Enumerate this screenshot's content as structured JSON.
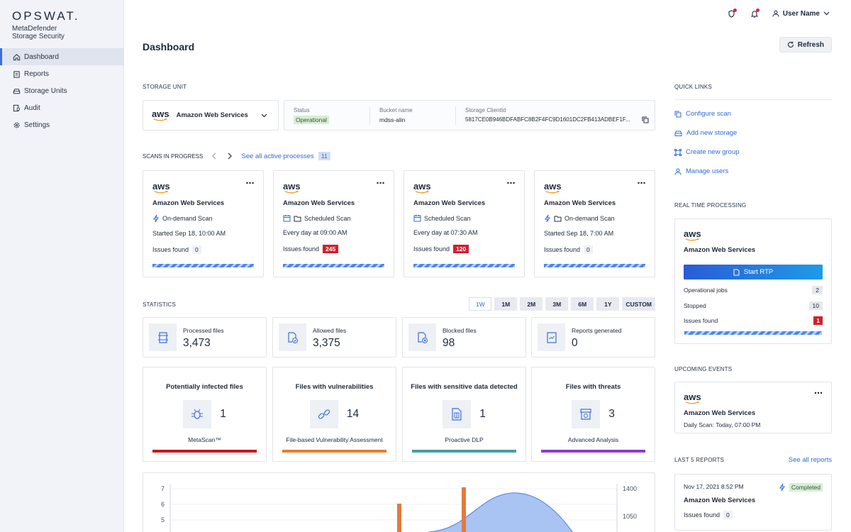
{
  "brand": {
    "logo": "OPSWAT.",
    "product_line1": "MetaDefender",
    "product_line2": "Storage Security"
  },
  "sidebar": {
    "items": [
      {
        "label": "Dashboard",
        "icon": "home-icon",
        "active": true
      },
      {
        "label": "Reports",
        "icon": "clipboard-icon",
        "active": false
      },
      {
        "label": "Storage Units",
        "icon": "storage-icon",
        "active": false
      },
      {
        "label": "Audit",
        "icon": "audit-icon",
        "active": false
      },
      {
        "label": "Settings",
        "icon": "gear-icon",
        "active": false
      }
    ]
  },
  "topbar": {
    "user_name": "User Name"
  },
  "page": {
    "title": "Dashboard",
    "refresh_label": "Refresh"
  },
  "storage_unit": {
    "section_label": "STORAGE UNIT",
    "selected": "Amazon Web Services",
    "status_label": "Status",
    "status_value": "Operational",
    "bucket_label": "Bucket name",
    "bucket_value": "mdss-alin",
    "client_label": "Storage ClientId",
    "client_value": "5817CE0B946BDFABFC8B2F4FC9D1601DC2FB413ADBEF1F..."
  },
  "scans": {
    "section_label": "SCANS IN PROGRESS",
    "see_all": "See all active processes",
    "count": "11",
    "cards": [
      {
        "provider": "Amazon Web Services",
        "type": "On-demand Scan",
        "schedule": "Started Sep 18, 10:00 AM",
        "issues_label": "Issues found",
        "issues": "0",
        "red": false,
        "folder": false,
        "type_icon": "bolt-icon"
      },
      {
        "provider": "Amazon Web Services",
        "type": "Scheduled Scan",
        "schedule": "Every day at 09:00 AM",
        "issues_label": "Issues found",
        "issues": "245",
        "red": true,
        "folder": true,
        "type_icon": "calendar-icon"
      },
      {
        "provider": "Amazon Web Services",
        "type": "Scheduled Scan",
        "schedule": "Every day at 07:30 AM",
        "issues_label": "Issues found",
        "issues": "120",
        "red": true,
        "folder": false,
        "type_icon": "calendar-icon"
      },
      {
        "provider": "Amazon Web Services",
        "type": "On-demand Scan",
        "schedule": "Started Sep 18, 7:00 AM",
        "issues_label": "Issues found",
        "issues": "0",
        "red": false,
        "folder": true,
        "type_icon": "bolt-icon"
      }
    ]
  },
  "statistics": {
    "section_label": "STATISTICS",
    "ranges": [
      "1W",
      "1M",
      "2M",
      "3M",
      "6M",
      "1Y",
      "CUSTOM"
    ],
    "active_range": "1W",
    "summary": [
      {
        "label": "Processed files",
        "value": "3,473",
        "icon": "processed-files-icon"
      },
      {
        "label": "Allowed files",
        "value": "3,375",
        "icon": "allowed-files-icon"
      },
      {
        "label": "Blocked files",
        "value": "98",
        "icon": "blocked-files-icon"
      },
      {
        "label": "Reports generated",
        "value": "0",
        "icon": "reports-icon"
      }
    ],
    "details": [
      {
        "title": "Potentially infected files",
        "value": "1",
        "sub": "MetaScan™",
        "color": "#c8161d",
        "icon": "bug-icon"
      },
      {
        "title": "Files with vulnerabilities",
        "value": "14",
        "sub": "File-based Vulnerability Assessment",
        "color": "#e67e2e",
        "icon": "link-icon"
      },
      {
        "title": "Files with sensitive data detected",
        "value": "1",
        "sub": "Proactive DLP",
        "color": "#4a9ea0",
        "icon": "document-icon"
      },
      {
        "title": "Files with threats",
        "value": "3",
        "sub": "Advanced Analysis",
        "color": "#8a3ecf",
        "icon": "sandbox-icon"
      }
    ]
  },
  "chart_data": {
    "type": "area",
    "y_left_ticks": [
      "7",
      "6",
      "5"
    ],
    "y_right_ticks": [
      "1400",
      "1050"
    ]
  },
  "quick_links": {
    "section_label": "QUICK LINKS",
    "items": [
      {
        "label": "Configure scan",
        "icon": "copy-icon"
      },
      {
        "label": "Add new storage",
        "icon": "storage-add-icon"
      },
      {
        "label": "Create new group",
        "icon": "group-icon"
      },
      {
        "label": "Manage users",
        "icon": "users-icon"
      }
    ]
  },
  "rtp": {
    "section_label": "REAL TIME PROCESSING",
    "provider": "Amazon Web Services",
    "button": "Start RTP",
    "rows": [
      {
        "label": "Operational jobs",
        "value": "2",
        "red": false
      },
      {
        "label": "Stopped",
        "value": "10",
        "red": false
      },
      {
        "label": "Issues found",
        "value": "1",
        "red": true
      }
    ]
  },
  "events": {
    "section_label": "UPCOMING EVENTS",
    "provider": "Amazon Web Services",
    "label": "Daily Scan:",
    "time": "Today, 07:00 PM"
  },
  "reports": {
    "section_label": "LAST 5 REPORTS",
    "see_all": "See all reports",
    "date": "Nov 17, 2021 8:52 PM",
    "status": "Completed",
    "provider": "Amazon Web Services",
    "issues_label": "Issues found",
    "issues": "0"
  }
}
